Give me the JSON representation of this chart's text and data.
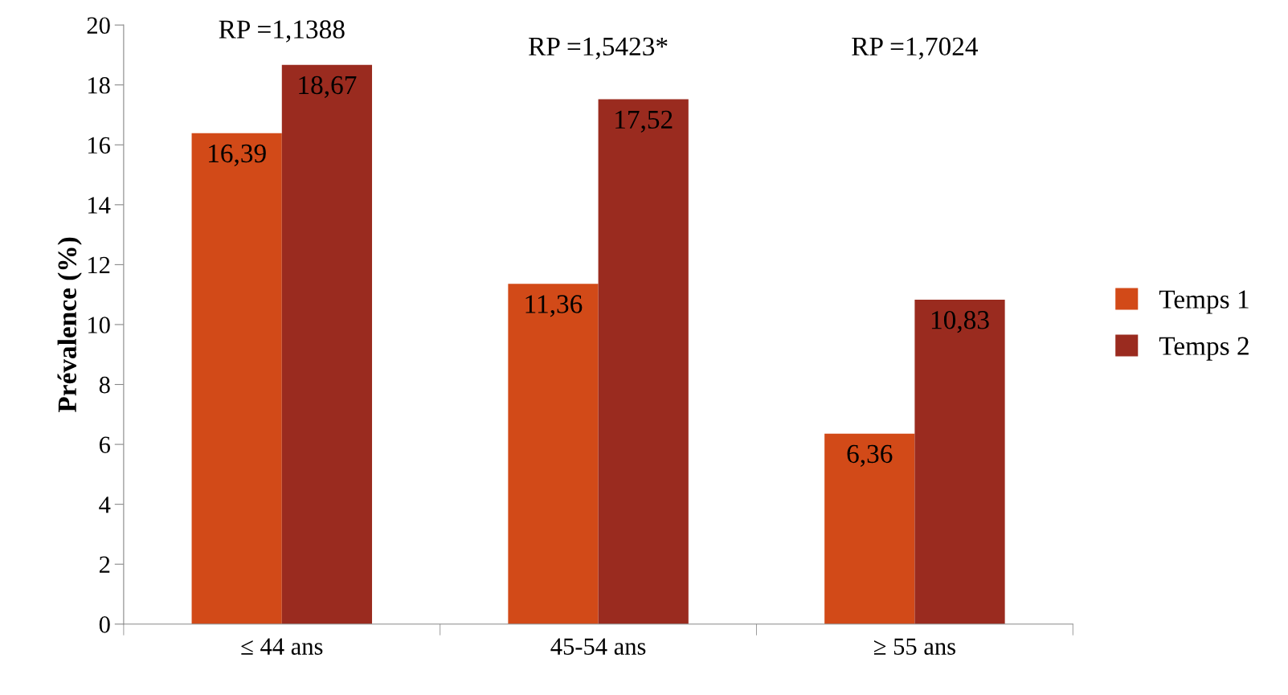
{
  "chart_data": {
    "type": "bar",
    "ylabel": "Prévalence (%)",
    "categories": [
      "≤ 44 ans",
      "45-54 ans",
      "≥ 55 ans"
    ],
    "series": [
      {
        "name": "Temps 1",
        "color": "#d24a18",
        "values": [
          16.39,
          11.36,
          6.36
        ],
        "value_labels": [
          "16,39",
          "11,36",
          "6,36"
        ]
      },
      {
        "name": "Temps 2",
        "color": "#9a2b1f",
        "values": [
          18.67,
          17.52,
          10.83
        ],
        "value_labels": [
          "18,67",
          "17,52",
          "10,83"
        ]
      }
    ],
    "annotations": [
      "RP =1,1388",
      "RP =1,5423*",
      "RP =1,7024"
    ],
    "ylim": [
      0,
      20
    ],
    "yticks": [
      0,
      2,
      4,
      6,
      8,
      10,
      12,
      14,
      16,
      18,
      20
    ],
    "grid": false,
    "legend": "right"
  }
}
